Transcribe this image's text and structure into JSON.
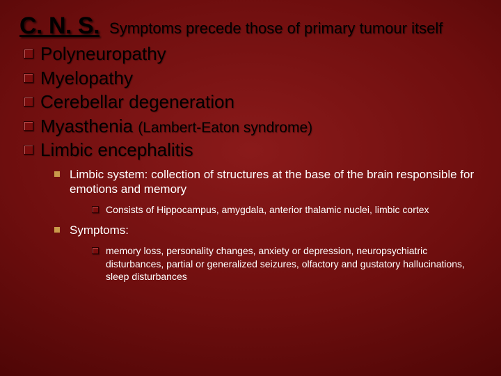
{
  "header": {
    "title": "C. N. S.",
    "subtitle": "Symptoms precede those of primary tumour itself"
  },
  "mainList": {
    "items": [
      {
        "text": "Polyneuropathy"
      },
      {
        "text": "Myelopathy"
      },
      {
        "text": "Cerebellar degeneration"
      },
      {
        "text": "Myasthenia ",
        "paren": "(Lambert-Eaton syndrome)"
      },
      {
        "text": "Limbic encephalitis"
      }
    ]
  },
  "sub": {
    "limbicDef": "Limbic system: collection of structures at the base of the brain responsible for emotions and memory",
    "consists": "Consists of Hippocampus, amygdala, anterior thalamic nuclei, limbic cortex",
    "symptomsLabel": "Symptoms:",
    "symptomsText": "memory loss, personality changes, anxiety or depression, neuropsychiatric disturbances, partial or generalized seizures, olfactory and gustatory hallucinations, sleep disturbances"
  },
  "style": {
    "slide_w": 720,
    "slide_h": 540,
    "bg_center": "#8a1a1a",
    "bg_edge": "#2a0000",
    "title_color": "#000000",
    "title_fontsize": 34,
    "subtitle_fontsize": 22,
    "lvl1_fontsize": 26,
    "lvl1_color": "#000000",
    "lvl2_fontsize": 17,
    "lvl2_color": "#ffffff",
    "lvl3_fontsize": 14,
    "lvl3_color": "#ffffff",
    "bullet_sq_color": "#7a0d0d",
    "bullet_n_color": "#c99a4a"
  }
}
